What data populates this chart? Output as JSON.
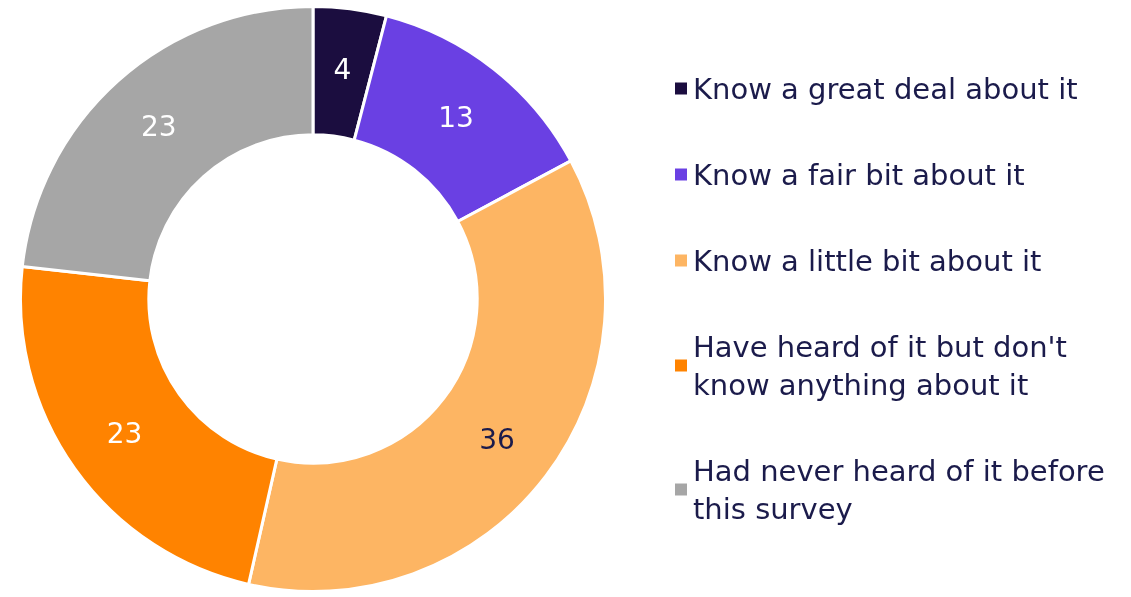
{
  "chart_data": {
    "type": "donut",
    "categories": [
      "Know a great deal about it",
      "Know a fair bit about it",
      "Know a little bit about it",
      "Have heard of it but don't know anything about it",
      "Had never heard of it before this survey"
    ],
    "values": [
      4,
      13,
      36,
      23,
      23
    ],
    "colors": [
      "#1b0d3f",
      "#6a40e3",
      "#fdb563",
      "#ff8300",
      "#a6a6a6"
    ],
    "data_labels": true,
    "legend": "right"
  }
}
